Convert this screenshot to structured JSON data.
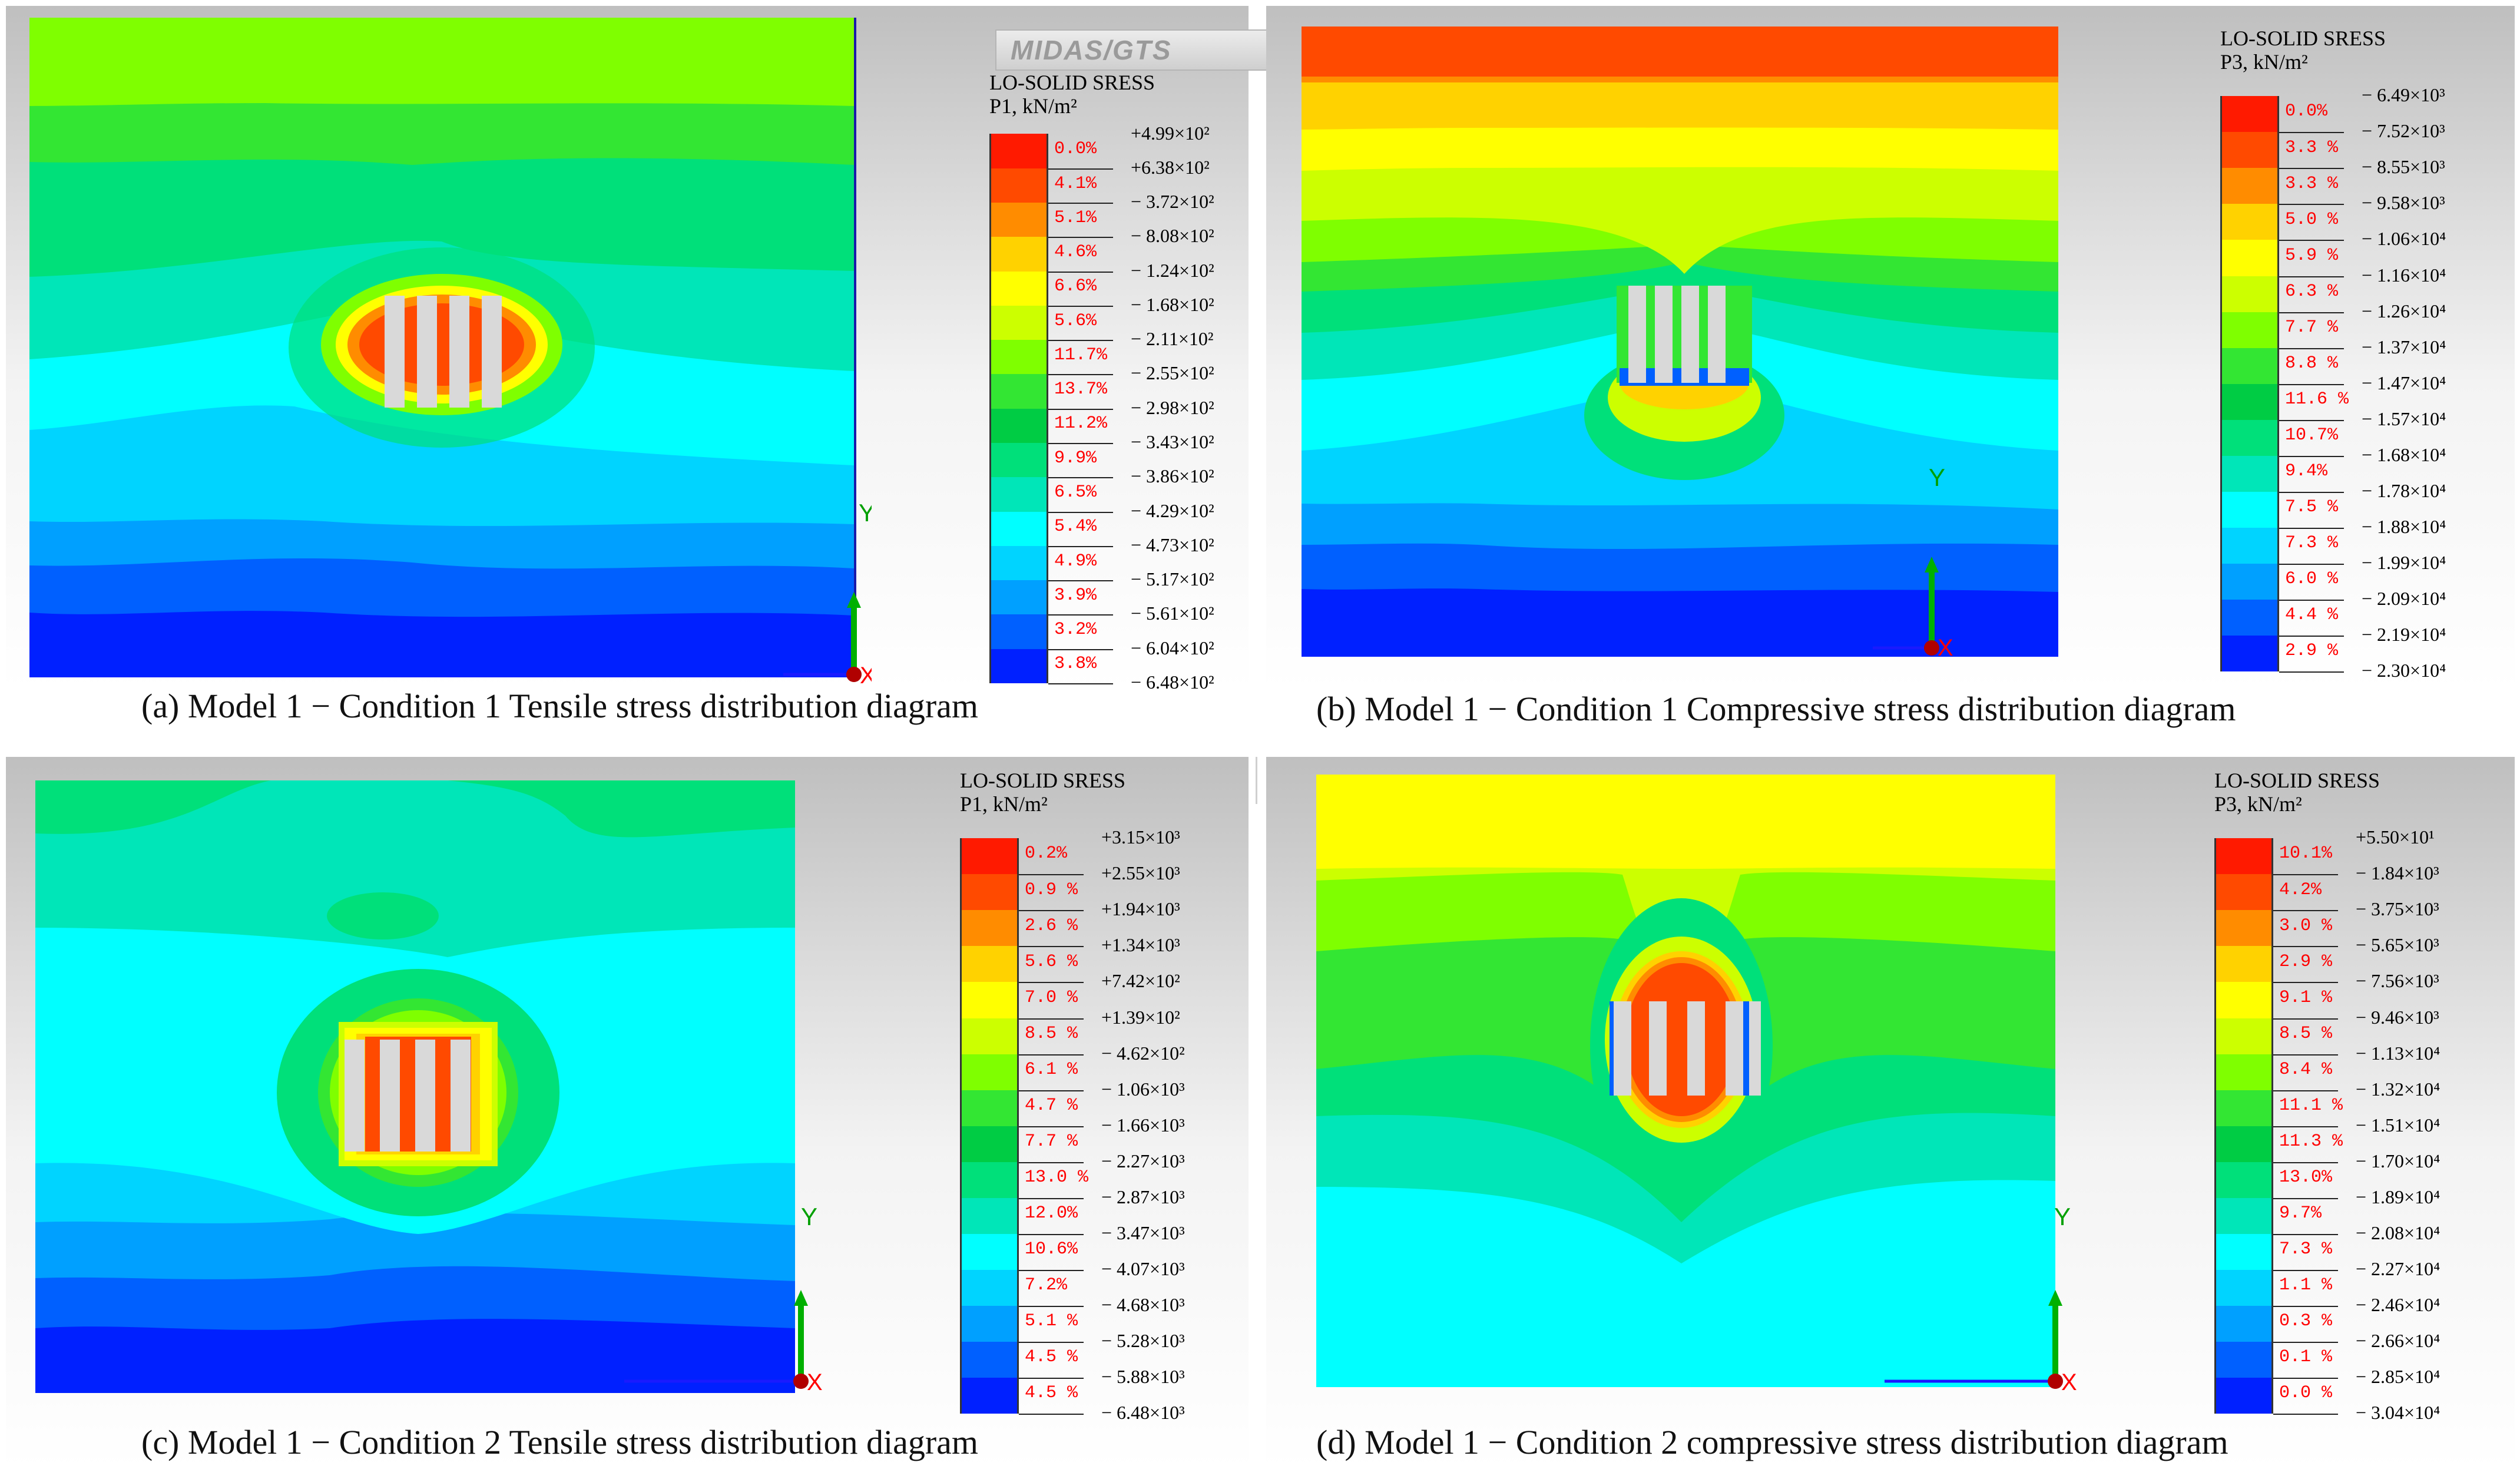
{
  "logo": "MIDAS/GTS",
  "panels": [
    {
      "id": "a",
      "title": "LO-SOLID SRESS",
      "subtitle": "P1, kN/m²",
      "caption": "(a) Model 1 − Condition 1 Tensile stress distribution diagram",
      "axis_label": "Y",
      "colors": [
        "#ff1a00",
        "#ff4a00",
        "#ff8c00",
        "#ffd200",
        "#ffff00",
        "#ccff00",
        "#7fff00",
        "#33e633",
        "#00cc44",
        "#00e07a",
        "#00e6b8",
        "#00ffff",
        "#00d4ff",
        "#00a0ff",
        "#0060ff",
        "#0020ff"
      ],
      "percents": [
        "0.0%",
        "4.1%",
        "5.1%",
        "4.6%",
        "6.6%",
        "5.6%",
        "11.7%",
        "13.7%",
        "11.2%",
        "9.9%",
        "6.5%",
        "5.4%",
        "4.9%",
        "3.9%",
        "3.2%",
        "3.8%"
      ],
      "values": [
        "+4.99×10²",
        "+6.38×10²",
        "− 3.72×10²",
        "− 8.08×10²",
        "− 1.24×10²",
        "− 1.68×10²",
        "− 2.11×10²",
        "− 2.55×10²",
        "− 2.98×10²",
        "− 3.43×10²",
        "− 3.86×10²",
        "− 4.29×10²",
        "− 4.73×10²",
        "− 5.17×10²",
        "− 5.61×10²",
        "− 6.04×10²",
        "− 6.48×10²"
      ]
    },
    {
      "id": "b",
      "title": "LO-SOLID SRESS",
      "subtitle": "P3, kN/m²",
      "caption": "(b) Model 1 − Condition 1 Compressive  stress distribution  diagram",
      "axis_label": "Y",
      "colors": [
        "#ff1a00",
        "#ff4a00",
        "#ff8c00",
        "#ffd200",
        "#ffff00",
        "#ccff00",
        "#7fff00",
        "#33e633",
        "#00cc44",
        "#00e07a",
        "#00e6b8",
        "#00ffff",
        "#00d4ff",
        "#00a0ff",
        "#0060ff",
        "#0020ff"
      ],
      "percents": [
        "0.0%",
        "3.3 %",
        "3.3 %",
        "5.0 %",
        "5.9 %",
        "6.3 %",
        "7.7 %",
        "8.8 %",
        "11.6 %",
        "10.7%",
        "9.4%",
        "7.5 %",
        "7.3 %",
        "6.0 %",
        "4.4 %",
        "2.9 %"
      ],
      "values": [
        "− 6.49×10³",
        "− 7.52×10³",
        "− 8.55×10³",
        "− 9.58×10³",
        "− 1.06×10⁴",
        "− 1.16×10⁴",
        "− 1.26×10⁴",
        "− 1.37×10⁴",
        "− 1.47×10⁴",
        "− 1.57×10⁴",
        "− 1.68×10⁴",
        "− 1.78×10⁴",
        "− 1.88×10⁴",
        "− 1.99×10⁴",
        "− 2.09×10⁴",
        "− 2.19×10⁴",
        "− 2.30×10⁴"
      ]
    },
    {
      "id": "c",
      "title": "LO-SOLID SRESS",
      "subtitle": "P1, kN/m²",
      "caption": "(c) Model 1 − Condition 2 Tensile stress distribution diagram",
      "axis_label": "Y",
      "colors": [
        "#ff1a00",
        "#ff4a00",
        "#ff8c00",
        "#ffd200",
        "#ffff00",
        "#ccff00",
        "#7fff00",
        "#33e633",
        "#00cc44",
        "#00e07a",
        "#00e6b8",
        "#00ffff",
        "#00d4ff",
        "#00a0ff",
        "#0060ff",
        "#0020ff"
      ],
      "percents": [
        "0.2%",
        "0.9 %",
        "2.6 %",
        "5.6 %",
        "7.0 %",
        "8.5 %",
        "6.1 %",
        "4.7 %",
        "7.7 %",
        "13.0 %",
        "12.0%",
        "10.6%",
        "7.2%",
        "5.1 %",
        "4.5 %",
        "4.5 %"
      ],
      "values": [
        "+3.15×10³",
        "+2.55×10³",
        "+1.94×10³",
        "+1.34×10³",
        "+7.42×10²",
        "+1.39×10²",
        "− 4.62×10²",
        "− 1.06×10³",
        "− 1.66×10³",
        "− 2.27×10³",
        "− 2.87×10³",
        "− 3.47×10³",
        "− 4.07×10³",
        "− 4.68×10³",
        "− 5.28×10³",
        "− 5.88×10³",
        "− 6.48×10³"
      ]
    },
    {
      "id": "d",
      "title": "LO-SOLID SRESS",
      "subtitle": "P3, kN/m²",
      "caption": "(d) Model 1 − Condition 2 compressive  stress distribution  diagram",
      "axis_label": "Y",
      "colors": [
        "#ff1a00",
        "#ff4a00",
        "#ff8c00",
        "#ffd200",
        "#ffff00",
        "#ccff00",
        "#7fff00",
        "#33e633",
        "#00cc44",
        "#00e07a",
        "#00e6b8",
        "#00ffff",
        "#00d4ff",
        "#00a0ff",
        "#0060ff",
        "#0020ff"
      ],
      "percents": [
        "10.1%",
        "4.2%",
        "3.0 %",
        "2.9 %",
        "9.1 %",
        "8.5 %",
        "8.4 %",
        "11.1 %",
        "11.3 %",
        "13.0%",
        "9.7%",
        "7.3 %",
        "1.1 %",
        "0.3 %",
        "0.1 %",
        "0.0 %"
      ],
      "values": [
        "+5.50×10¹",
        "− 1.84×10³",
        "− 3.75×10³",
        "− 5.65×10³",
        "− 7.56×10³",
        "− 9.46×10³",
        "− 1.13×10⁴",
        "− 1.32×10⁴",
        "− 1.51×10⁴",
        "− 1.70×10⁴",
        "− 1.89×10⁴",
        "− 2.08×10⁴",
        "− 2.27×10⁴",
        "− 2.46×10⁴",
        "− 2.66×10⁴",
        "− 2.85×10⁴",
        "− 3.04×10⁴"
      ]
    }
  ]
}
